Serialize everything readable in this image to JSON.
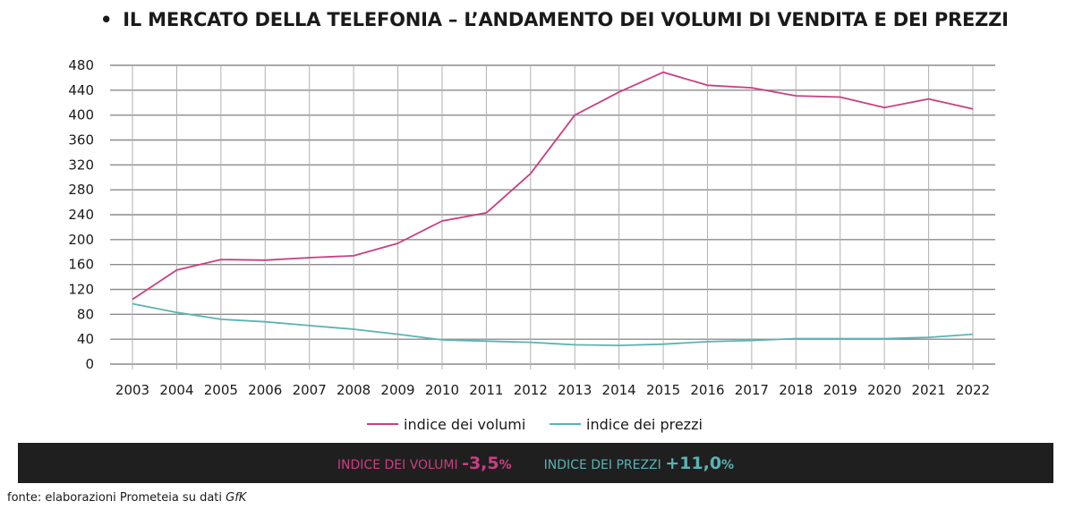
{
  "title": {
    "bullet": "•",
    "text": "IL MERCATO DELLA TELEFONIA – L’ANDAMENTO DEI VOLUMI DI VENDITA E DEI PREZZI"
  },
  "colors": {
    "volumi": "#c93f82",
    "prezzi": "#5bb3b5",
    "grid": "#8c8c8c",
    "banner_bg": "#1f1f1f"
  },
  "chart_data": {
    "type": "line",
    "x": [
      "2003",
      "2004",
      "2005",
      "2006",
      "2007",
      "2008",
      "2009",
      "2010",
      "2011",
      "2012",
      "2013",
      "2014",
      "2015",
      "2016",
      "2017",
      "2018",
      "2019",
      "2020",
      "2021",
      "2022"
    ],
    "ylim": [
      0,
      480
    ],
    "yticks": [
      0,
      40,
      80,
      120,
      160,
      200,
      240,
      280,
      320,
      360,
      400,
      440,
      480
    ],
    "grid": "horizontal and vertical",
    "legend_position": "bottom-center",
    "series": [
      {
        "name": "indice dei volumi",
        "color": "#c93f82",
        "values": [
          104,
          151,
          168,
          167,
          171,
          174,
          194,
          230,
          243,
          306,
          400,
          437,
          469,
          448,
          444,
          431,
          429,
          412,
          426,
          410
        ]
      },
      {
        "name": "indice dei prezzi",
        "color": "#5bb3b5",
        "values": [
          97,
          83,
          72,
          68,
          62,
          56,
          48,
          39,
          37,
          35,
          31,
          30,
          32,
          36,
          38,
          41,
          41,
          41,
          43,
          48
        ]
      }
    ]
  },
  "banner": {
    "volumi_label": "INDICE DEI VOLUMI",
    "volumi_value": "-3,5",
    "volumi_pct": "%",
    "prezzi_label": "INDICE DEI PREZZI",
    "prezzi_value": "+11,0",
    "prezzi_pct": "%"
  },
  "source": {
    "prefix": "fonte: elaborazioni Prometeia su dati",
    "emph": "GfK"
  }
}
